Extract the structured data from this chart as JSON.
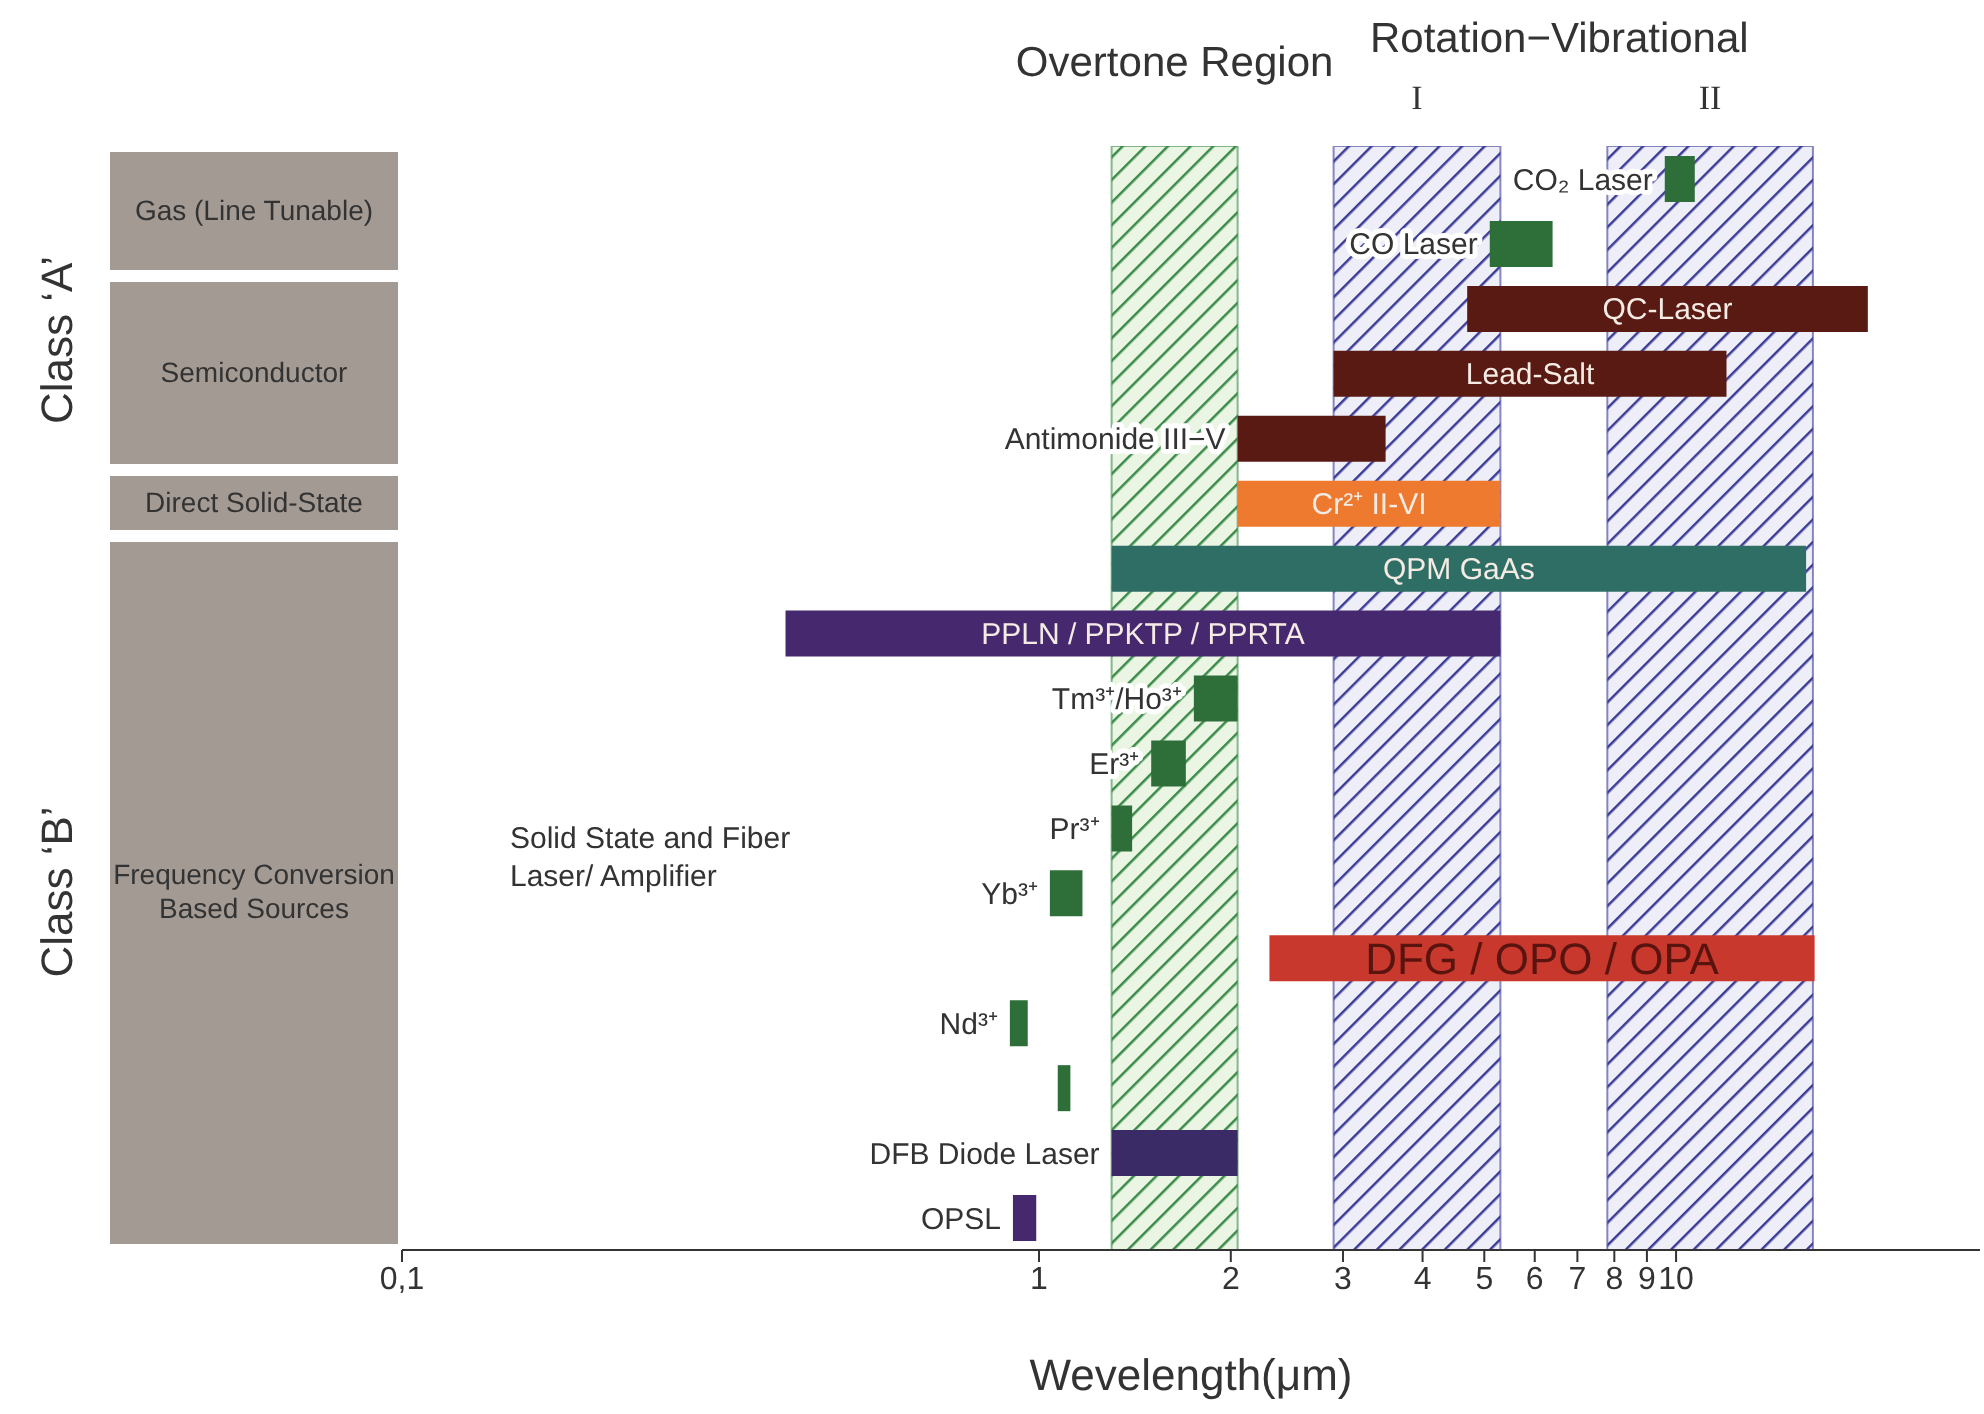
{
  "chart_data": {
    "type": "bar",
    "orientation": "horizontal",
    "log": "x",
    "xlabel": "Wevelength(μm)",
    "categories": [
      "CO₂ Laser",
      "CO Laser",
      "QC-Laser",
      "Lead-Salt",
      "Antimonide III−V",
      "Cr²⁺ II-VI",
      "QPM GaAs",
      "PPLN / PPKTP / PPRTA",
      "Tm³⁺/Ho³⁺",
      "Er³⁺",
      "Pr³⁺",
      "Yb³⁺",
      "DFG / OPO / OPA",
      "Nd³⁺",
      null,
      "DFB Diode Laser",
      "OPSL"
    ],
    "base": [
      9.6,
      5.1,
      4.7,
      2.9,
      2.05,
      2.05,
      1.3,
      0.4,
      1.75,
      1.5,
      1.3,
      1.04,
      2.3,
      0.9,
      1.07,
      1.3,
      0.91
    ],
    "values": [
      1.1,
      1.3,
      15.3,
      9.1,
      1.45,
      3.25,
      14.7,
      4.9,
      0.3,
      0.2,
      0.1,
      0.13,
      14.2,
      0.06,
      0.05,
      0.75,
      0.08
    ],
    "colors": [
      "#2e6e38",
      "#2e6e38",
      "#5a1a14",
      "#5a1a14",
      "#5a1a14",
      "#ee7a30",
      "#2e6e64",
      "#46286e",
      "#2e6e38",
      "#2e6e38",
      "#2e6e38",
      "#2e6e38",
      "#c8382c",
      "#2e6e38",
      "#2e6e38",
      "#3a2a66",
      "#46286e"
    ],
    "xlim": [
      0.1,
      30
    ],
    "xticks": [
      {
        "value": 0.1,
        "label": "0,1"
      },
      1,
      2,
      3,
      4,
      5,
      6,
      7,
      8,
      9,
      10
    ],
    "bands": [
      {
        "axis": "x",
        "from": 1.3,
        "to": 2.05,
        "label": "Overtone Region",
        "color": "#3a8a48"
      },
      {
        "axis": "x",
        "from": 2.9,
        "to": 5.3,
        "label": "I",
        "color": "#3c3c96"
      },
      {
        "axis": "x",
        "from": 7.8,
        "to": 16.4,
        "label": "II",
        "color": "#3c3c96"
      }
    ],
    "annotations": [
      "Class ‘A’",
      "Class ‘B’",
      "Gas (Line Tunable)",
      "Semiconductor",
      "Direct Solid-State",
      "Frequency Conversion Based Sources",
      "Solid State and Fiber Laser/ Amplifier",
      "Rotation−Vibrational"
    ]
  }
}
